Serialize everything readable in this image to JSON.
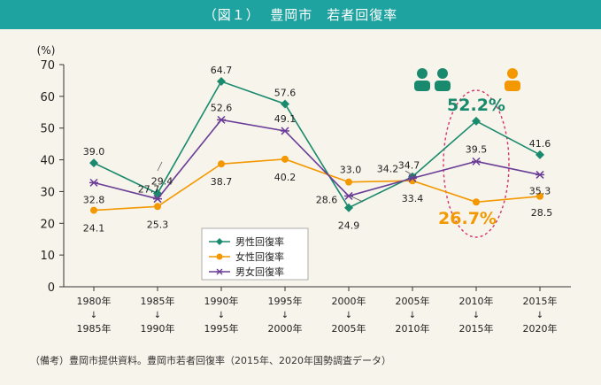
{
  "header": {
    "figure_label": "（図１）",
    "title": "豊岡市　若者回復率"
  },
  "chart_data": {
    "type": "line",
    "title": "豊岡市　若者回復率",
    "ylabel": "(%)",
    "ylim": [
      0,
      70
    ],
    "yticks": [
      0,
      10,
      20,
      30,
      40,
      50,
      60,
      70
    ],
    "categories": [
      [
        "1980年",
        "1985年"
      ],
      [
        "1985年",
        "1990年"
      ],
      [
        "1990年",
        "1995年"
      ],
      [
        "1995年",
        "2000年"
      ],
      [
        "2000年",
        "2005年"
      ],
      [
        "2005年",
        "2010年"
      ],
      [
        "2010年",
        "2015年"
      ],
      [
        "2015年",
        "2020年"
      ]
    ],
    "arrow_glyph": "↓",
    "series": [
      {
        "name": "男性回復率",
        "color": "#1a8a6e",
        "marker": "diamond",
        "values": [
          39.0,
          29.4,
          64.7,
          57.6,
          24.9,
          34.7,
          52.2,
          41.6
        ],
        "labels": [
          "39.0",
          "29.4",
          "64.7",
          "57.6",
          "24.9",
          "34.7",
          "52.2%",
          "41.6"
        ]
      },
      {
        "name": "女性回復率",
        "color": "#f39800",
        "marker": "circle",
        "values": [
          24.1,
          25.3,
          38.7,
          40.2,
          33.0,
          33.4,
          26.7,
          28.5
        ],
        "labels": [
          "24.1",
          "25.3",
          "38.7",
          "40.2",
          "33.0",
          "33.4",
          "26.7%",
          "28.5"
        ]
      },
      {
        "name": "男女回復率",
        "color": "#6a3d97",
        "marker": "star",
        "values": [
          32.8,
          27.7,
          52.6,
          49.1,
          28.6,
          34.2,
          39.5,
          35.3
        ],
        "labels": [
          "32.8",
          "27.7",
          "52.6",
          "49.1",
          "28.6",
          "34.2",
          "39.5",
          "35.3"
        ]
      }
    ],
    "highlight": {
      "category_index": 6,
      "male_label": "52.2%",
      "female_label": "26.7%"
    },
    "legend_position": "bottom-left-inside",
    "icons": [
      "male-person-icon",
      "male-person-icon",
      "female-person-icon"
    ]
  },
  "footnote": "（備考）豊岡市提供資料。豊岡市若者回復率（2015年、2020年国勢調査データ）"
}
